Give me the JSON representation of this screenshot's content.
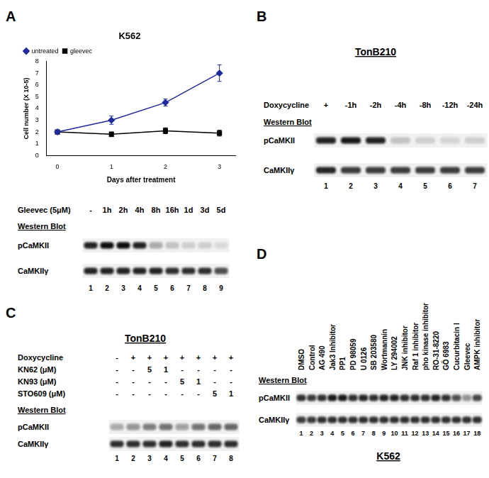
{
  "chart_data": {
    "type": "line",
    "title": "K562",
    "x_label": "Days after treatment",
    "y_label": "Cell number (X 10-5)",
    "x": [
      0,
      1,
      2,
      3
    ],
    "xlim": [
      -0.2,
      3.3
    ],
    "xticks": [
      0,
      1,
      2,
      3
    ],
    "ylim": [
      0,
      8
    ],
    "yticks": [
      0,
      1,
      2,
      3,
      4,
      5,
      6,
      7,
      8
    ],
    "grid": false,
    "legend": "top-left",
    "series": [
      {
        "name": "untreated",
        "color": "#1f2aa0",
        "marker": "diamond",
        "values": [
          2,
          3,
          4.5,
          7
        ],
        "errors": [
          0,
          0.35,
          0.3,
          0.7
        ]
      },
      {
        "name": "gleevec",
        "color": "#000000",
        "marker": "square",
        "values": [
          2,
          1.8,
          2.1,
          1.9
        ],
        "errors": [
          0,
          0.2,
          0.25,
          0.25
        ]
      }
    ]
  },
  "figure": {
    "panels": [
      {
        "label": "A",
        "treatments": [
          {
            "label": "Gleevec (5μM)",
            "lanes": [
              "-",
              "1h",
              "2h",
              "4h",
              "8h",
              "16h",
              "1d",
              "3d",
              "5d"
            ]
          }
        ],
        "western_blot": "Western Blot",
        "rows": [
          {
            "name": "pCaMKII",
            "intensity": [
              0.9,
              1,
              1,
              0.9,
              0.3,
              0.2,
              0.15,
              0.15,
              0.1
            ]
          },
          {
            "name": "CaMKIIγ",
            "intensity": [
              0.9,
              0.9,
              0.9,
              0.9,
              0.9,
              0.85,
              0.85,
              0.85,
              0.7
            ]
          }
        ],
        "lane_numbers": [
          1,
          2,
          3,
          4,
          5,
          6,
          7,
          8,
          9
        ]
      },
      {
        "label": "B",
        "title": "TonB210",
        "treatments": [
          {
            "label": "Doxycycline",
            "lanes": [
              "+",
              "-1h",
              "-2h",
              "-4h",
              "-8h",
              "-12h",
              "-24h"
            ]
          }
        ],
        "western_blot": "Western Blot",
        "rows": [
          {
            "name": "pCaMKII",
            "intensity": [
              0.9,
              0.95,
              0.9,
              0.2,
              0.15,
              0.12,
              0.15
            ]
          },
          {
            "name": "CaMKIIγ",
            "intensity": [
              0.9,
              0.8,
              0.8,
              0.8,
              0.8,
              0.8,
              0.8
            ]
          }
        ],
        "lane_numbers": [
          1,
          2,
          3,
          4,
          5,
          6,
          7
        ]
      },
      {
        "label": "C",
        "title": "TonB210",
        "treatments": [
          {
            "label": "Doxycycline",
            "lanes": [
              "-",
              "+",
              "+",
              "+",
              "+",
              "+",
              "+",
              "+"
            ]
          },
          {
            "label": "KN62 (μM)",
            "lanes": [
              "-",
              "-",
              "5",
              "1",
              "-",
              "-",
              "-",
              "-"
            ]
          },
          {
            "label": "KN93 (μM)",
            "lanes": [
              "-",
              "-",
              "-",
              "-",
              "5",
              "1",
              "-",
              "-"
            ]
          },
          {
            "label": "STO609 (μM)",
            "lanes": [
              "-",
              "-",
              "-",
              "-",
              "-",
              "-",
              "5",
              "1"
            ]
          }
        ],
        "western_blot": "Western Blot",
        "rows": [
          {
            "name": "pCaMKII",
            "intensity": [
              0.3,
              0.4,
              0.5,
              0.55,
              0.35,
              0.55,
              0.6,
              0.6
            ]
          },
          {
            "name": "CaMKIIγ",
            "intensity": [
              0.85,
              0.85,
              0.85,
              0.9,
              0.85,
              0.85,
              0.85,
              0.85
            ]
          }
        ],
        "lane_numbers": [
          1,
          2,
          3,
          4,
          5,
          6,
          7,
          8
        ]
      },
      {
        "label": "D",
        "title": "K562",
        "treatments": [
          {
            "lanes": [
              "DMSO",
              "Control",
              "AG 490",
              "Jak3 Inhibitor",
              "PP1",
              "PD 98059",
              "U 0126",
              "SB 203580",
              "Wortmannin",
              "LY 294002",
              "JNK inhibitor",
              "Raf 1 inhibitor",
              "pho kinase inhibitor",
              "RO-31-8220",
              "GÖ 6983",
              "Cucurbitacin I",
              "Gleevec",
              "AMPK inhibitor"
            ]
          }
        ],
        "western_blot": "Western Blot",
        "rows": [
          {
            "name": "pCaMKII",
            "intensity": [
              0.85,
              0.8,
              0.85,
              0.95,
              0.95,
              0.85,
              0.9,
              0.85,
              0.9,
              0.9,
              0.85,
              0.85,
              0.85,
              0.9,
              0.85,
              0.7,
              0.4,
              0.75
            ]
          },
          {
            "name": "CaMKIIγ",
            "intensity": [
              0.8,
              0.8,
              0.85,
              0.85,
              0.85,
              0.85,
              0.85,
              0.85,
              0.85,
              0.85,
              0.85,
              0.85,
              0.85,
              0.85,
              0.85,
              0.85,
              0.85,
              0.85
            ]
          }
        ],
        "lane_numbers": [
          1,
          2,
          3,
          4,
          5,
          6,
          7,
          8,
          9,
          10,
          11,
          12,
          13,
          14,
          15,
          16,
          17,
          18
        ]
      }
    ]
  }
}
